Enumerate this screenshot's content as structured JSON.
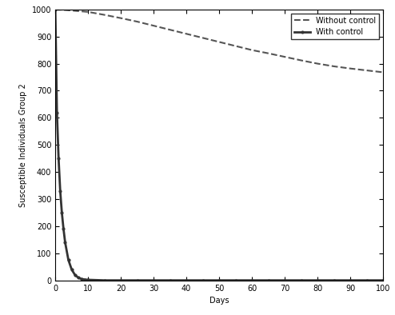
{
  "chart_data": {
    "type": "line",
    "x_label": "Days",
    "y_label": "Susceptible Individuals Group 2",
    "x": [
      0,
      0.5,
      1,
      1.5,
      2,
      2.5,
      3,
      4,
      5,
      6,
      7,
      8,
      9,
      10,
      15,
      20,
      25,
      30,
      35,
      40,
      45,
      50,
      55,
      60,
      65,
      70,
      75,
      80,
      85,
      90,
      95,
      100
    ],
    "series": [
      {
        "name": "Without control",
        "color": "#555555",
        "line_style": "dashed",
        "marker": "none",
        "values": [
          1000,
          1000,
          999,
          999,
          999,
          998,
          998,
          997,
          996,
          995,
          994,
          993,
          992,
          991,
          980,
          968,
          955,
          940,
          925,
          910,
          895,
          880,
          865,
          850,
          838,
          825,
          812,
          800,
          790,
          782,
          775,
          768
        ]
      },
      {
        "name": "With control",
        "color": "#333333",
        "line_style": "solid",
        "marker": "dot",
        "values": [
          1000,
          620,
          450,
          330,
          250,
          190,
          140,
          75,
          40,
          20,
          10,
          5,
          3,
          2,
          0,
          0,
          0,
          0,
          0,
          0,
          0,
          0,
          0,
          0,
          0,
          0,
          0,
          0,
          0,
          0,
          0,
          0
        ]
      }
    ],
    "xlim": [
      0,
      100
    ],
    "xticks": [
      0,
      10,
      20,
      30,
      40,
      50,
      60,
      70,
      80,
      90,
      100
    ],
    "ylim": [
      0,
      1000
    ],
    "yticks": [
      0,
      100,
      200,
      300,
      400,
      500,
      600,
      700,
      800,
      900,
      1000
    ],
    "grid": false,
    "legend": "upper right"
  }
}
